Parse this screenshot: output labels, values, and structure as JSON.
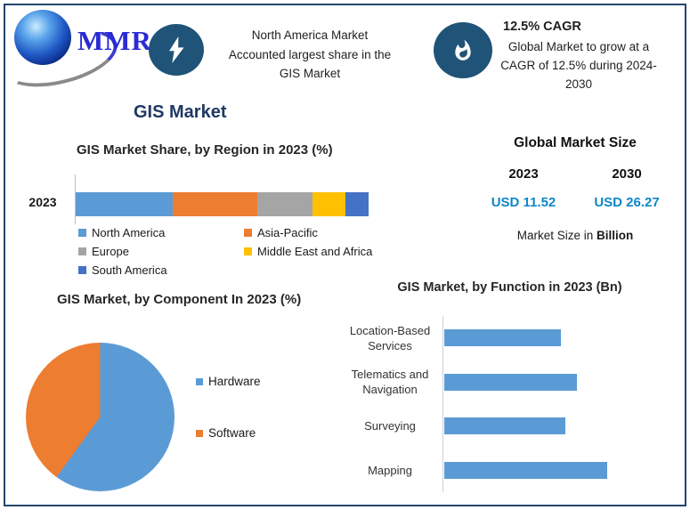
{
  "brand": {
    "name": "MMR"
  },
  "colors": {
    "border_navy": "#24446C",
    "title_navy": "#1F3864",
    "value_blue": "#0F86C8",
    "icon_circle_bg": "#1F5377",
    "logo_blue": "#2B2BD5"
  },
  "header": {
    "share_callout": {
      "icon": "lightning-icon",
      "lines": [
        "North America Market",
        "Accounted largest share in the",
        "GIS Market"
      ]
    },
    "cagr_callout": {
      "icon": "flame-icon",
      "title": "12.5% CAGR",
      "lines": [
        "Global Market to grow at a",
        "CAGR of 12.5% during 2024-",
        "2030"
      ]
    }
  },
  "page_title": "GIS Market",
  "market_size_panel": {
    "title": "Global Market Size",
    "columns": [
      {
        "year": "2023",
        "value": "USD 11.52"
      },
      {
        "year": "2030",
        "value": "USD 26.27"
      }
    ],
    "note_prefix": "Market Size in ",
    "note_bold": "Billion"
  },
  "chart_data": [
    {
      "type": "bar",
      "stacked": true,
      "orientation": "horizontal",
      "title": "GIS Market Share, by Region in 2023 (%)",
      "categories": [
        "2023"
      ],
      "series": [
        {
          "name": "North America",
          "value": 33,
          "color": "#5B9BD5"
        },
        {
          "name": "Asia-Pacific",
          "value": 29,
          "color": "#ED7D31"
        },
        {
          "name": "Europe",
          "value": 19,
          "color": "#A5A5A5"
        },
        {
          "name": "Middle East and Africa",
          "value": 11,
          "color": "#FFC000"
        },
        {
          "name": "South America",
          "value": 8,
          "color": "#4472C4"
        }
      ],
      "xlim": [
        0,
        100
      ],
      "legend_position": "bottom",
      "grid": false
    },
    {
      "type": "pie",
      "title": "GIS Market, by Component In 2023 (%)",
      "slices": [
        {
          "name": "Hardware",
          "value": 60,
          "color": "#5B9BD5"
        },
        {
          "name": "Software",
          "value": 40,
          "color": "#ED7D31"
        }
      ],
      "start_angle_deg": 0,
      "legend_position": "right"
    },
    {
      "type": "bar",
      "orientation": "horizontal",
      "title": "GIS Market, by Function in 2023 (Bn)",
      "categories": [
        "Location-Based Services",
        "Telematics and Navigation",
        "Surveying",
        "Mapping"
      ],
      "values": [
        2.5,
        2.85,
        2.6,
        3.5
      ],
      "bar_color": "#5B9BD5",
      "xlim": [
        0,
        4
      ],
      "grid": false
    }
  ]
}
